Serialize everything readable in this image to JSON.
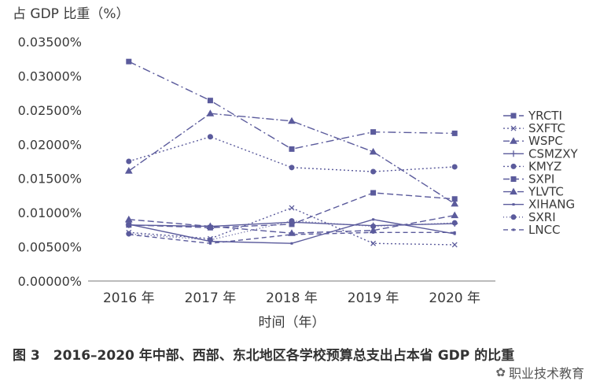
{
  "chart_data": {
    "type": "line",
    "ylabel": "占 GDP 比重（%）",
    "xlabel": "时间（年）",
    "categories": [
      "2016 年",
      "2017 年",
      "2018 年",
      "2019 年",
      "2020 年"
    ],
    "ylim": [
      0,
      0.035
    ],
    "yticks": [
      "0.00000%",
      "0.00500%",
      "0.01000%",
      "0.01500%",
      "0.02000%",
      "0.02500%",
      "0.03000%",
      "0.03500%"
    ],
    "grid": false,
    "legend_position": "right",
    "series": [
      {
        "name": "YRCTI",
        "values": [
          0.0321,
          0.0264,
          0.0193,
          0.0218,
          0.0216
        ],
        "marker": "square"
      },
      {
        "name": "SXFTC",
        "values": [
          0.0071,
          0.0062,
          0.0107,
          0.0055,
          0.0053
        ],
        "marker": "x"
      },
      {
        "name": "WSPC",
        "values": [
          0.009,
          0.008,
          0.007,
          0.0074,
          0.0096
        ],
        "marker": "triangle"
      },
      {
        "name": "CSMZXY",
        "values": [
          0.0082,
          0.008,
          0.0086,
          0.0081,
          0.0084
        ],
        "marker": "plus"
      },
      {
        "name": "KMYZ",
        "values": [
          0.0175,
          0.0211,
          0.0166,
          0.016,
          0.0167
        ],
        "marker": "circle"
      },
      {
        "name": "SXPI",
        "values": [
          0.0082,
          0.0078,
          0.0083,
          0.0129,
          0.012
        ],
        "marker": "square"
      },
      {
        "name": "YLVTC",
        "values": [
          0.0161,
          0.0245,
          0.0234,
          0.0189,
          0.0113
        ],
        "marker": "triangle"
      },
      {
        "name": "XIHANG",
        "values": [
          0.0083,
          0.0058,
          0.0055,
          0.009,
          0.0069
        ],
        "marker": "line"
      },
      {
        "name": "SXRI",
        "values": [
          0.0069,
          0.006,
          0.0088,
          0.008,
          0.0085
        ],
        "marker": "circle"
      },
      {
        "name": "LNCC",
        "values": [
          0.0068,
          0.0055,
          0.0068,
          0.0071,
          0.0071
        ],
        "marker": "line"
      }
    ]
  },
  "caption": "图 3　2016–2020 年中部、西部、东北地区各学校预算总支出占本省 GDP 的比重",
  "watermark": "职业技术教育",
  "colors": {
    "line": "#5b5b9c",
    "axis": "#7a7a7a",
    "text": "#3a3a3a"
  }
}
